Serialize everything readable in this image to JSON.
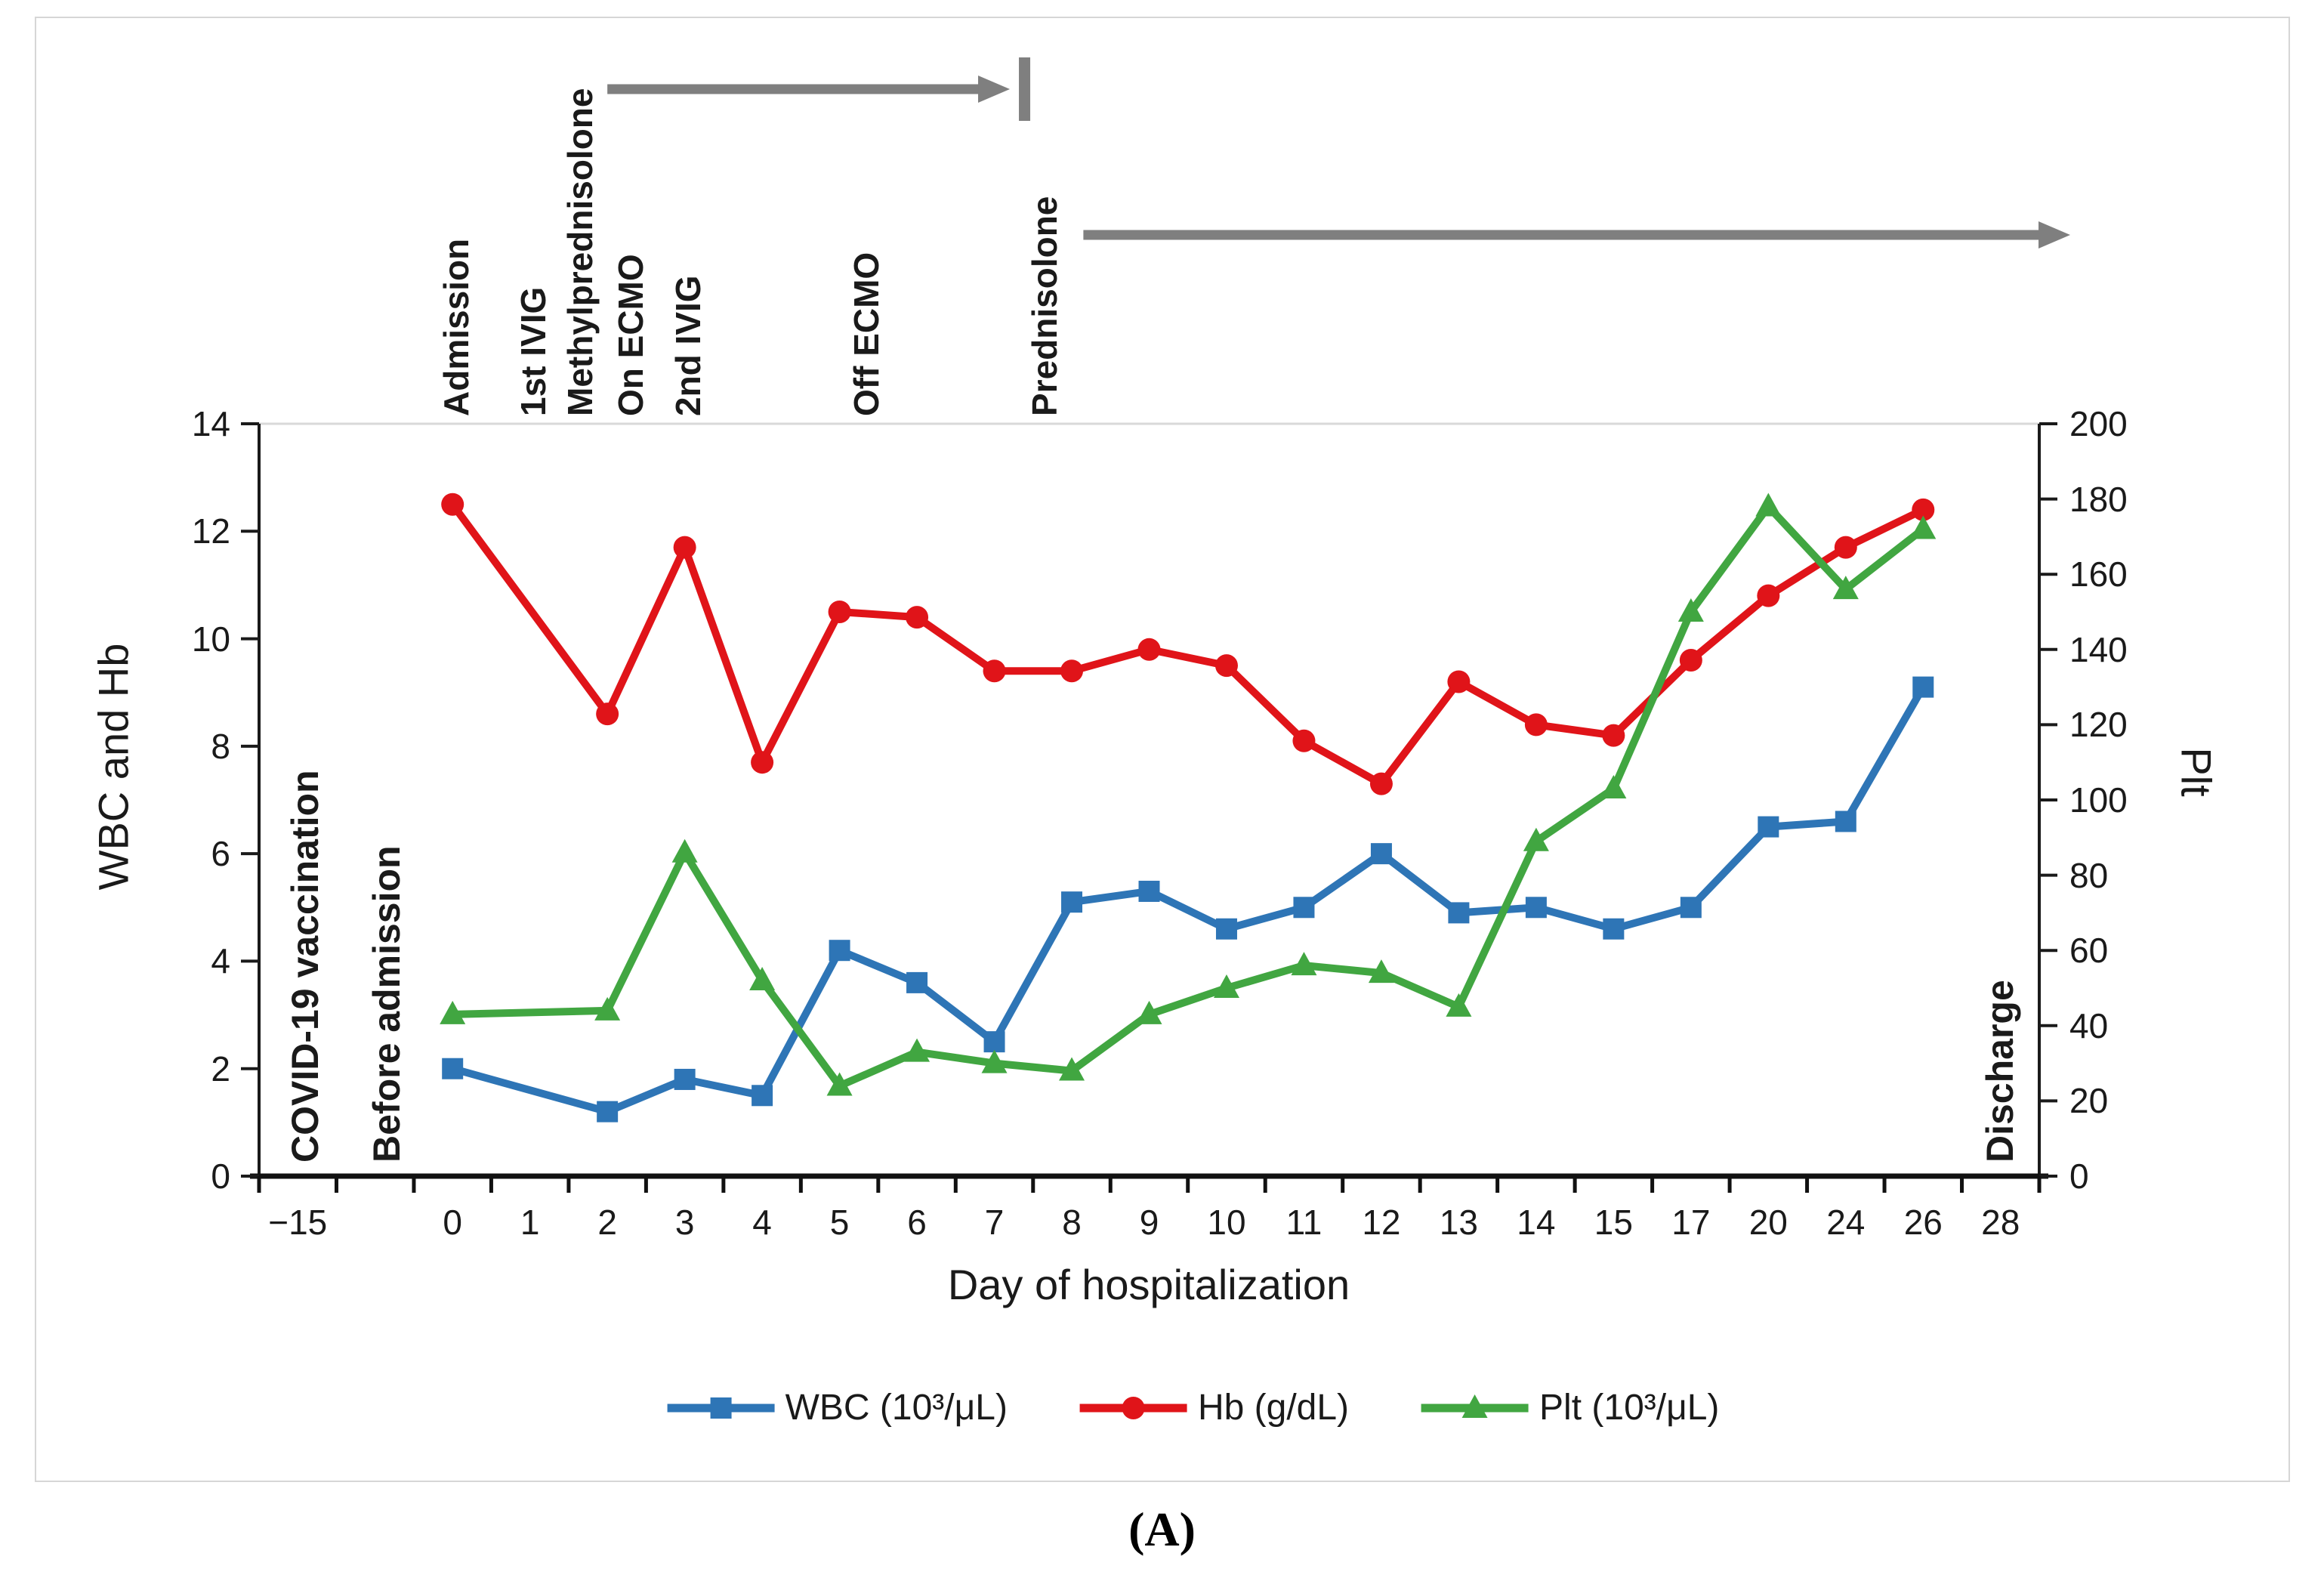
{
  "figure": {
    "caption": "(A)"
  },
  "chart_data": {
    "type": "line",
    "title": "",
    "x_axis": {
      "title": "Day of hospitalization",
      "categories": [
        "−15",
        "",
        "0",
        "1",
        "2",
        "3",
        "4",
        "5",
        "6",
        "7",
        "8",
        "9",
        "10",
        "11",
        "12",
        "13",
        "14",
        "15",
        "17",
        "20",
        "24",
        "26",
        "28"
      ],
      "ticks_between_categories": true
    },
    "left_axis": {
      "title": "WBC and Hb",
      "min": 0,
      "max": 14,
      "ticks": [
        "0",
        "2",
        "4",
        "6",
        "8",
        "10",
        "12",
        "14"
      ]
    },
    "right_axis": {
      "title": "Plt",
      "min": 0,
      "max": 200,
      "ticks": [
        "0",
        "20",
        "40",
        "60",
        "80",
        "100",
        "120",
        "140",
        "160",
        "180",
        "200"
      ]
    },
    "gridlines": "top boundary line only",
    "legend_position": "bottom-center",
    "series": [
      {
        "name": "WBC (10³/μL)",
        "axis": "left",
        "color": "#2E75B6",
        "marker": "square",
        "points": [
          [
            "0",
            2.0
          ],
          [
            "2",
            1.2
          ],
          [
            "3",
            1.8
          ],
          [
            "4",
            1.5
          ],
          [
            "5",
            4.2
          ],
          [
            "6",
            3.6
          ],
          [
            "7",
            2.5
          ],
          [
            "8",
            5.1
          ],
          [
            "9",
            5.3
          ],
          [
            "10",
            4.6
          ],
          [
            "11",
            5.0
          ],
          [
            "12",
            6.0
          ],
          [
            "13",
            4.9
          ],
          [
            "14",
            5.0
          ],
          [
            "15",
            4.6
          ],
          [
            "17",
            5.0
          ],
          [
            "20",
            6.5
          ],
          [
            "24",
            6.6
          ],
          [
            "26",
            9.1
          ]
        ]
      },
      {
        "name": "Hb (g/dL)",
        "axis": "left",
        "color": "#E01419",
        "marker": "circle",
        "points": [
          [
            "0",
            12.5
          ],
          [
            "2",
            8.6
          ],
          [
            "3",
            11.7
          ],
          [
            "4",
            7.7
          ],
          [
            "5",
            10.5
          ],
          [
            "6",
            10.4
          ],
          [
            "7",
            9.4
          ],
          [
            "8",
            9.4
          ],
          [
            "9",
            9.8
          ],
          [
            "10",
            9.5
          ],
          [
            "11",
            8.1
          ],
          [
            "12",
            7.3
          ],
          [
            "13",
            9.2
          ],
          [
            "14",
            8.4
          ],
          [
            "15",
            8.2
          ],
          [
            "17",
            9.6
          ],
          [
            "20",
            10.8
          ],
          [
            "24",
            11.7
          ],
          [
            "26",
            12.4
          ]
        ]
      },
      {
        "name": "Plt (10³/μL)",
        "axis": "right",
        "color": "#41A641",
        "marker": "triangle",
        "points": [
          [
            "0",
            43
          ],
          [
            "2",
            44
          ],
          [
            "3",
            86
          ],
          [
            "4",
            52
          ],
          [
            "5",
            24
          ],
          [
            "6",
            33
          ],
          [
            "7",
            30
          ],
          [
            "8",
            28
          ],
          [
            "9",
            43
          ],
          [
            "10",
            50
          ],
          [
            "11",
            56
          ],
          [
            "12",
            54
          ],
          [
            "13",
            45
          ],
          [
            "14",
            89
          ],
          [
            "15",
            103
          ],
          [
            "17",
            150
          ],
          [
            "20",
            178
          ],
          [
            "24",
            156
          ],
          [
            "26",
            172
          ]
        ]
      }
    ],
    "event_annotations": {
      "above_plot": [
        {
          "label": "Admission",
          "slot": 2.05
        },
        {
          "label": "1st IVIG",
          "slot": 3.05
        },
        {
          "label": "Methylprednisolone",
          "slot": 3.65
        },
        {
          "label": "On ECMO",
          "slot": 4.3
        },
        {
          "label": "2nd IVIG",
          "slot": 5.05
        },
        {
          "label": "Off ECMO",
          "slot": 7.35
        },
        {
          "label": "Prednisolone",
          "slot": 9.65
        }
      ],
      "inside_plot": [
        {
          "label": "COVID-19 vaccination",
          "slot": 0.1
        },
        {
          "label": "Before admission",
          "slot": 1.15
        },
        {
          "label": "Discharge",
          "slot": 22.0
        }
      ],
      "duration_arrows": [
        {
          "for_label": "Methylprednisolone",
          "from_slot": 4.0,
          "to_slot": 9.2,
          "row_y": 118,
          "end_cap": "bar",
          "color": "#7F7F7F"
        },
        {
          "for_label": "Prednisolone",
          "from_slot": 10.15,
          "to_slot": 22.9,
          "row_y": 311,
          "end_cap": "arrow",
          "color": "#7F7F7F"
        }
      ]
    }
  }
}
